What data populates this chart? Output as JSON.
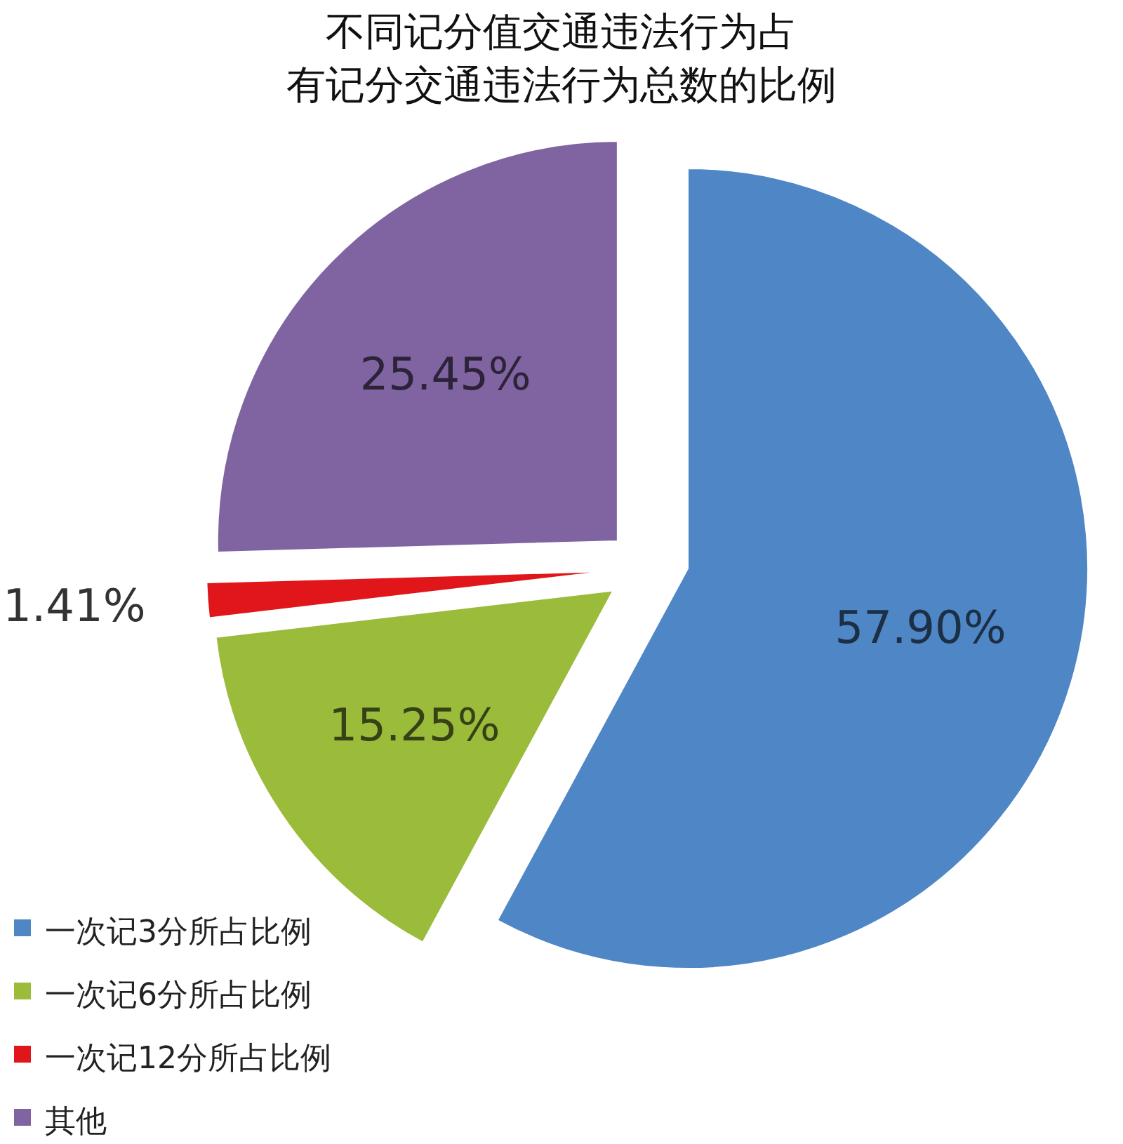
{
  "chart_data": {
    "type": "pie",
    "title": "不同记分值交通违法行为占",
    "subtitle": "有记分交通违法行为总数的比例",
    "categories": [
      "一次记3分所占比例",
      "一次记6分所占比例",
      "一次记12分所占比例",
      "其他"
    ],
    "values": [
      57.9,
      15.25,
      1.41,
      25.45
    ],
    "value_labels": [
      "57.90%",
      "15.25%",
      "1.41%",
      "25.45%"
    ],
    "colors": [
      "#4f86c6",
      "#9bbb3b",
      "#e0161b",
      "#8064a2"
    ],
    "legend": "bottom left"
  }
}
